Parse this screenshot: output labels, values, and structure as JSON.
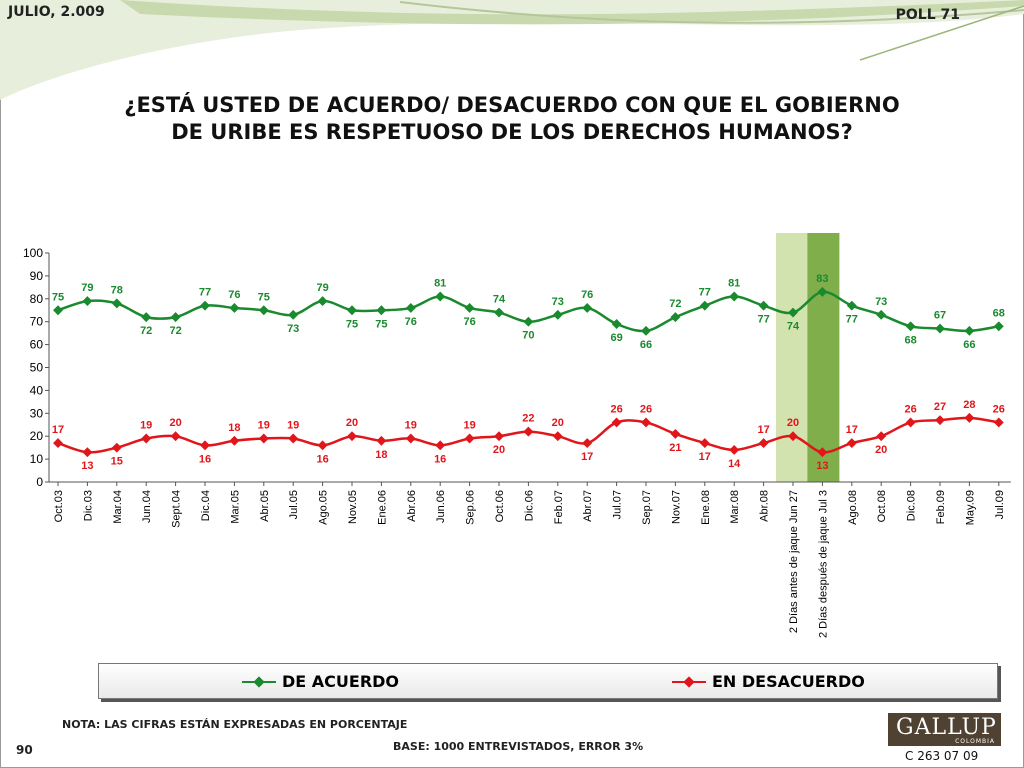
{
  "header": {
    "date": "JULIO, 2.009",
    "poll": "POLL 71"
  },
  "title_lines": [
    "¿ESTÁ USTED DE ACUERDO/ DESACUERDO CON QUE EL GOBIERNO",
    "DE URIBE ES RESPETUOSO DE LOS DERECHOS HUMANOS?"
  ],
  "chart_data": {
    "type": "line",
    "categories": [
      "Oct.03",
      "Dic.03",
      "Mar.04",
      "Jun.04",
      "Sept.04",
      "Dic.04",
      "Mar.05",
      "Abr.05",
      "Jul.05",
      "Ago.05",
      "Nov.05",
      "Ene.06",
      "Abr.06",
      "Jun.06",
      "Sep.06",
      "Oct.06",
      "Dic.06",
      "Feb.07",
      "Abr.07",
      "Jul.07",
      "Sep.07",
      "Nov.07",
      "Ene.08",
      "Mar.08",
      "Abr.08",
      "2 Días antes de jaque Jun 27",
      "2 Días después de jaque Jul 3",
      "Ago.08",
      "Oct.08",
      "Dic.08",
      "Feb.09",
      "May.09",
      "Jul.09"
    ],
    "series": [
      {
        "name": "DE ACUERDO",
        "color": "#1a8a2e",
        "values": [
          75,
          79,
          78,
          72,
          72,
          77,
          76,
          75,
          73,
          79,
          75,
          75,
          76,
          81,
          76,
          74,
          70,
          73,
          76,
          69,
          66,
          72,
          77,
          81,
          77,
          74,
          83,
          77,
          73,
          68,
          67,
          66,
          68
        ]
      },
      {
        "name": "EN DESACUERDO",
        "color": "#e0161b",
        "values": [
          17,
          13,
          15,
          19,
          20,
          16,
          18,
          19,
          19,
          16,
          20,
          18,
          19,
          16,
          19,
          20,
          22,
          20,
          17,
          26,
          26,
          21,
          17,
          14,
          17,
          20,
          13,
          17,
          20,
          26,
          27,
          28,
          26
        ]
      }
    ],
    "ylim": [
      0,
      100
    ],
    "yticks": [
      0,
      10,
      20,
      30,
      40,
      50,
      60,
      70,
      80,
      90,
      100
    ],
    "highlight_colors": [
      "#d3e3b0",
      "#7fae4a"
    ],
    "legend_position": "bottom"
  },
  "legend": {
    "agree_label": "DE ACUERDO",
    "disagree_label": "EN DESACUERDO"
  },
  "footer": {
    "nota": "NOTA: LAS CIFRAS ESTÁN EXPRESADAS EN PORCENTAJE",
    "base": "BASE: 1000 ENTREVISTADOS, ERROR 3%",
    "page_number": "90",
    "logo": "GALLUP",
    "logo_sub": "COLOMBIA",
    "code": "C 263 07 09"
  }
}
